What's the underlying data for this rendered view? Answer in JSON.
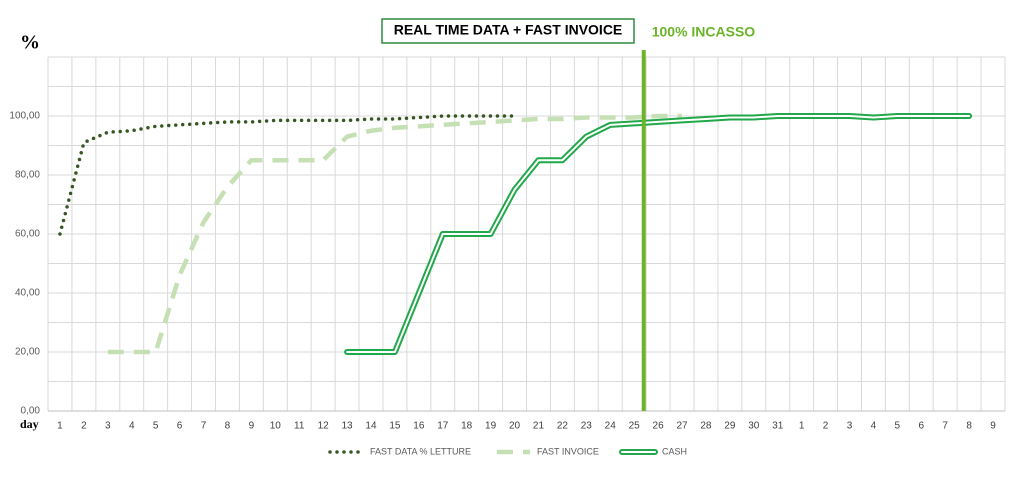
{
  "chart_data": {
    "type": "line",
    "title": "REAL TIME DATA + FAST INVOICE",
    "y_label": "%",
    "x_label": "day",
    "categories": [
      "1",
      "2",
      "3",
      "4",
      "5",
      "6",
      "7",
      "8",
      "9",
      "10",
      "11",
      "12",
      "13",
      "14",
      "15",
      "16",
      "17",
      "18",
      "19",
      "20",
      "21",
      "22",
      "23",
      "24",
      "25",
      "26",
      "27",
      "28",
      "29",
      "30",
      "31",
      "1",
      "2",
      "3",
      "4",
      "5",
      "6",
      "7",
      "8",
      "9"
    ],
    "series": [
      {
        "name": "FAST DATA % LETTURE",
        "color": "#375623",
        "style": "dotted",
        "values": [
          60,
          91,
          94.5,
          95,
          96.5,
          97,
          97.5,
          98,
          98,
          98.5,
          98.5,
          98.5,
          98.5,
          99,
          99,
          99.5,
          100,
          100,
          100,
          100,
          null,
          null,
          null,
          null,
          null,
          null,
          null,
          null,
          null,
          null,
          null,
          null,
          null,
          null,
          null,
          null,
          null,
          null,
          null,
          null
        ]
      },
      {
        "name": "FAST INVOICE",
        "color": "#c5e0b4",
        "style": "dashed",
        "values": [
          null,
          null,
          20,
          20,
          20,
          46,
          64,
          76,
          85,
          85,
          85,
          85,
          93,
          95,
          96,
          96.5,
          97,
          97.5,
          98,
          98.5,
          99,
          99,
          99.5,
          99.5,
          99.5,
          100,
          100,
          null,
          null,
          null,
          null,
          null,
          null,
          null,
          null,
          null,
          null,
          null,
          null,
          null
        ]
      },
      {
        "name": "CASH",
        "color": "#21a84a",
        "style": "double",
        "values": [
          null,
          null,
          null,
          null,
          null,
          null,
          null,
          null,
          null,
          null,
          null,
          null,
          20,
          20,
          20,
          40,
          60,
          60,
          60,
          75,
          85,
          85,
          93,
          97,
          97.5,
          98,
          98.5,
          99,
          99.5,
          99.5,
          100,
          100,
          100,
          100,
          99.5,
          100,
          100,
          100,
          100,
          null
        ]
      }
    ],
    "ylim": [
      0,
      120
    ],
    "yticks": [
      {
        "value": 0,
        "label": "0,00"
      },
      {
        "value": 20,
        "label": "20,00"
      },
      {
        "value": 40,
        "label": "40,00"
      },
      {
        "value": 60,
        "label": "60,00"
      },
      {
        "value": 80,
        "label": "80,00"
      },
      {
        "value": 100,
        "label": "100,00"
      }
    ],
    "yminorticks": [
      10,
      30,
      50,
      70,
      90,
      110,
      120
    ],
    "grid": true,
    "vline": {
      "x": 24.4,
      "label": "100% INCASSO",
      "color": "#6bb42a"
    },
    "legend": "bottom"
  }
}
